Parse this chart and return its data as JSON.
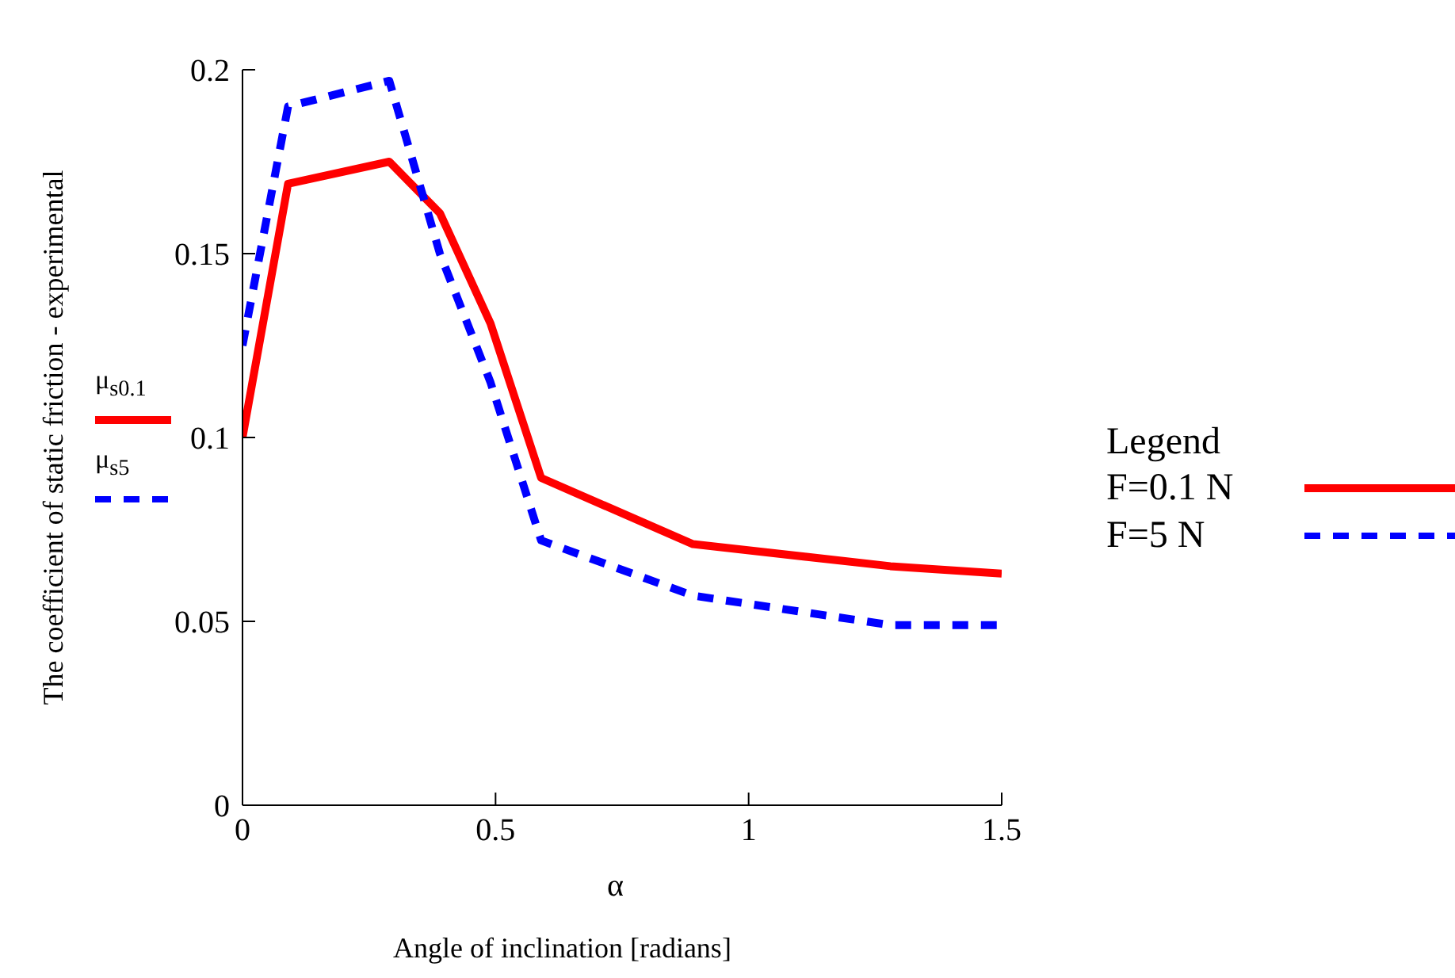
{
  "chart_data": {
    "type": "line",
    "xlabel": "α",
    "ylabel": "The coefficient of static friction - experimental",
    "legend_title": "Legend",
    "legend": "right",
    "grid": false,
    "marker": "none",
    "annotations": [
      "μ$_{s0.1}$",
      "μ$_{s5}$",
      "Angle of inclination [radians]"
    ],
    "x": [
      0,
      0.09,
      0.29,
      0.39,
      0.49,
      0.59,
      0.89,
      1.28,
      1.5
    ],
    "xlim": [
      0,
      1.5
    ],
    "xticks": [
      0,
      0.5,
      1,
      1.5
    ],
    "ylim": [
      0,
      0.2
    ],
    "yticks": [
      0,
      0.05,
      0.1,
      0.15,
      0.2
    ],
    "series": [
      {
        "name": "F=0.1 N",
        "color": "#ff0000",
        "line_style": "solid",
        "values": [
          0.1,
          0.169,
          0.175,
          0.161,
          0.131,
          0.089,
          0.071,
          0.065,
          0.063
        ]
      },
      {
        "name": "F=5 N",
        "color": "#0000ff",
        "line_style": "dashed",
        "values": [
          0.125,
          0.19,
          0.197,
          0.15,
          0.115,
          0.072,
          0.057,
          0.049,
          0.049
        ]
      }
    ]
  }
}
